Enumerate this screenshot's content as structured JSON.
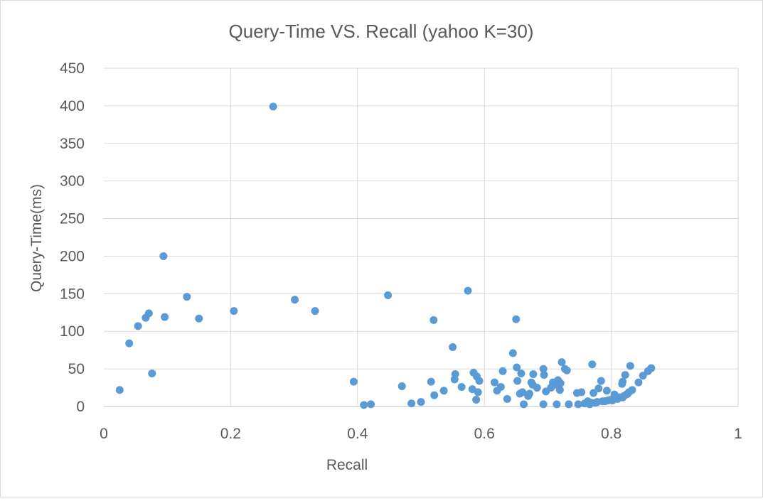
{
  "chart_data": {
    "type": "scatter",
    "title": "Query-Time VS. Recall (yahoo K=30)",
    "xlabel": "Recall",
    "ylabel": "Query-Time(ms)",
    "xlim": [
      0,
      1
    ],
    "ylim": [
      0,
      450
    ],
    "x_ticks": [
      "0",
      "0.2",
      "0.4",
      "0.6",
      "0.8",
      "1"
    ],
    "y_ticks": [
      "0",
      "50",
      "100",
      "150",
      "200",
      "250",
      "300",
      "350",
      "400",
      "450"
    ],
    "grid": true,
    "legend": "none",
    "marker_color": "#5b9bd5",
    "series": [
      {
        "points": [
          [
            0.025,
            22
          ],
          [
            0.04,
            84
          ],
          [
            0.054,
            107
          ],
          [
            0.066,
            118
          ],
          [
            0.071,
            124
          ],
          [
            0.076,
            44
          ],
          [
            0.094,
            200
          ],
          [
            0.096,
            119
          ],
          [
            0.131,
            146
          ],
          [
            0.15,
            117
          ],
          [
            0.205,
            127
          ],
          [
            0.267,
            399
          ],
          [
            0.301,
            142
          ],
          [
            0.333,
            127
          ],
          [
            0.394,
            33
          ],
          [
            0.41,
            2
          ],
          [
            0.421,
            3
          ],
          [
            0.448,
            148
          ],
          [
            0.47,
            27
          ],
          [
            0.485,
            4
          ],
          [
            0.5,
            6
          ],
          [
            0.516,
            33
          ],
          [
            0.52,
            115
          ],
          [
            0.521,
            15
          ],
          [
            0.536,
            21
          ],
          [
            0.55,
            79
          ],
          [
            0.553,
            36
          ],
          [
            0.554,
            43
          ],
          [
            0.564,
            26
          ],
          [
            0.574,
            154
          ],
          [
            0.581,
            23
          ],
          [
            0.583,
            45
          ],
          [
            0.587,
            9
          ],
          [
            0.588,
            40
          ],
          [
            0.59,
            19
          ],
          [
            0.592,
            34
          ],
          [
            0.616,
            32
          ],
          [
            0.62,
            21
          ],
          [
            0.626,
            26
          ],
          [
            0.629,
            47
          ],
          [
            0.636,
            10
          ],
          [
            0.645,
            71
          ],
          [
            0.65,
            116
          ],
          [
            0.651,
            52
          ],
          [
            0.652,
            34
          ],
          [
            0.656,
            17
          ],
          [
            0.658,
            44
          ],
          [
            0.66,
            19
          ],
          [
            0.662,
            3
          ],
          [
            0.669,
            14
          ],
          [
            0.671,
            17
          ],
          [
            0.674,
            32
          ],
          [
            0.676,
            29
          ],
          [
            0.677,
            43
          ],
          [
            0.683,
            25
          ],
          [
            0.693,
            3
          ],
          [
            0.693,
            50
          ],
          [
            0.694,
            42
          ],
          [
            0.697,
            20
          ],
          [
            0.705,
            25
          ],
          [
            0.708,
            32
          ],
          [
            0.712,
            29
          ],
          [
            0.714,
            3
          ],
          [
            0.716,
            35
          ],
          [
            0.719,
            22
          ],
          [
            0.72,
            31
          ],
          [
            0.722,
            59
          ],
          [
            0.727,
            50
          ],
          [
            0.73,
            48
          ],
          [
            0.733,
            3
          ],
          [
            0.746,
            18
          ],
          [
            0.748,
            3
          ],
          [
            0.753,
            19
          ],
          [
            0.758,
            4
          ],
          [
            0.763,
            7
          ],
          [
            0.766,
            3
          ],
          [
            0.768,
            5
          ],
          [
            0.77,
            56
          ],
          [
            0.772,
            18
          ],
          [
            0.775,
            5
          ],
          [
            0.778,
            6
          ],
          [
            0.78,
            24
          ],
          [
            0.784,
            34
          ],
          [
            0.786,
            7
          ],
          [
            0.79,
            7
          ],
          [
            0.793,
            21
          ],
          [
            0.795,
            8
          ],
          [
            0.799,
            9
          ],
          [
            0.802,
            8
          ],
          [
            0.805,
            16
          ],
          [
            0.807,
            11
          ],
          [
            0.81,
            10
          ],
          [
            0.813,
            12
          ],
          [
            0.817,
            30
          ],
          [
            0.818,
            33
          ],
          [
            0.818,
            12
          ],
          [
            0.82,
            14
          ],
          [
            0.822,
            42
          ],
          [
            0.824,
            16
          ],
          [
            0.826,
            17
          ],
          [
            0.828,
            19
          ],
          [
            0.83,
            54
          ],
          [
            0.833,
            22
          ],
          [
            0.843,
            32
          ],
          [
            0.85,
            41
          ],
          [
            0.858,
            47
          ],
          [
            0.863,
            51
          ]
        ]
      }
    ]
  }
}
